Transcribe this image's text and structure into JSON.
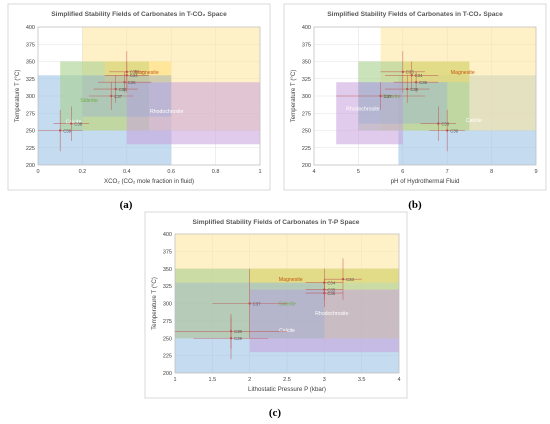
{
  "chart_data": [
    {
      "type": "region-scatter",
      "panel_label": "(a)",
      "title": "Simplified Stability Fields of Carbonates in T-CO₂ Space",
      "xlabel": "XCO₂ (CO₂ mole fraction in fluid)",
      "ylabel": "Temperature  T (°C)",
      "xlim": [
        0,
        1
      ],
      "ylim": [
        200,
        400
      ],
      "xticks": [
        "0",
        "0.2",
        "0.4",
        "0.6",
        "0.8",
        "1"
      ],
      "yticks": [
        "200",
        "225",
        "250",
        "275",
        "300",
        "325",
        "350",
        "375",
        "400"
      ],
      "grid": true,
      "regions": [
        {
          "label": "Calcite",
          "color": "#9dc3e6",
          "alpha": 0.6,
          "x": [
            0.0,
            0.6
          ],
          "y": [
            200,
            330
          ]
        },
        {
          "label": "",
          "color": "#ffe699",
          "alpha": 0.55,
          "x": [
            0.2,
            1.0
          ],
          "y": [
            250,
            400
          ]
        },
        {
          "label": "Siderite",
          "color": "#a9d18e",
          "alpha": 0.6,
          "x": [
            0.1,
            0.5
          ],
          "y": [
            250,
            350
          ]
        },
        {
          "label": "Rhodochrosite",
          "color": "#c9a0dc",
          "alpha": 0.55,
          "x": [
            0.4,
            1.0
          ],
          "y": [
            230,
            320
          ]
        },
        {
          "label": "Magnesite",
          "color": "#ffd966",
          "alpha": 0.45,
          "x": [
            0.3,
            0.6
          ],
          "y": [
            320,
            350
          ]
        },
        {
          "label": "",
          "color": "#8faadc",
          "alpha": 0.35,
          "x": [
            0.2,
            0.6
          ],
          "y": [
            270,
            330
          ]
        }
      ],
      "region_label_pos": [
        {
          "text": "Magnesite",
          "x": 0.49,
          "y": 335,
          "color": "#c55a11"
        },
        {
          "text": "Siderite",
          "x": 0.23,
          "y": 294,
          "color": "#70ad47"
        },
        {
          "text": "Rhodochrosite",
          "x": 0.58,
          "y": 278,
          "color": "#ffffff"
        },
        {
          "text": "Calcite",
          "x": 0.16,
          "y": 263,
          "color": "#ffffff"
        }
      ],
      "points": [
        {
          "label": "C33",
          "x": 0.4,
          "y": 335,
          "xerr": 0.08,
          "yerr": 30
        },
        {
          "label": "C34",
          "x": 0.4,
          "y": 330,
          "xerr": 0.1,
          "yerr": 20
        },
        {
          "label": "C35",
          "x": 0.39,
          "y": 320,
          "xerr": 0.12,
          "yerr": 15
        },
        {
          "label": "C36",
          "x": 0.35,
          "y": 310,
          "xerr": 0.1,
          "yerr": 20
        },
        {
          "label": "C37",
          "x": 0.33,
          "y": 300,
          "xerr": 0.1,
          "yerr": 20
        },
        {
          "label": "C38",
          "x": 0.15,
          "y": 260,
          "xerr": 0.08,
          "yerr": 25
        },
        {
          "label": "C39",
          "x": 0.1,
          "y": 250,
          "xerr": 0.1,
          "yerr": 30
        }
      ]
    },
    {
      "type": "region-scatter",
      "panel_label": "(b)",
      "title": "Simplified Stability Fields of Carbonates in T-CO₂ Space",
      "xlabel": "pH of Hydrothermal Fluid",
      "ylabel": "Temperature  T (°C)",
      "xlim": [
        4,
        9
      ],
      "ylim": [
        200,
        400
      ],
      "xticks": [
        "4",
        "5",
        "6",
        "7",
        "8",
        "9"
      ],
      "yticks": [
        "200",
        "225",
        "250",
        "275",
        "300",
        "325",
        "350",
        "375",
        "400"
      ],
      "grid": true,
      "regions": [
        {
          "label": "Calcite",
          "color": "#9dc3e6",
          "alpha": 0.6,
          "x": [
            5.9,
            9.0
          ],
          "y": [
            200,
            330
          ]
        },
        {
          "label": "",
          "color": "#ffe699",
          "alpha": 0.55,
          "x": [
            5.5,
            9.0
          ],
          "y": [
            250,
            400
          ]
        },
        {
          "label": "Siderite",
          "color": "#a9d18e",
          "alpha": 0.6,
          "x": [
            5.0,
            7.5
          ],
          "y": [
            250,
            350
          ]
        },
        {
          "label": "Rhodochrosite",
          "color": "#c9a0dc",
          "alpha": 0.55,
          "x": [
            4.5,
            6.0
          ],
          "y": [
            230,
            320
          ]
        },
        {
          "label": "Magnesite",
          "color": "#ffd966",
          "alpha": 0.45,
          "x": [
            6.0,
            7.5
          ],
          "y": [
            320,
            350
          ]
        },
        {
          "label": "",
          "color": "#8faadc",
          "alpha": 0.35,
          "x": [
            5.0,
            7.0
          ],
          "y": [
            260,
            320
          ]
        }
      ],
      "region_label_pos": [
        {
          "text": "Magnesite",
          "x": 7.35,
          "y": 335,
          "color": "#c55a11"
        },
        {
          "text": "Siderite",
          "x": 5.75,
          "y": 300,
          "color": "#70ad47"
        },
        {
          "text": "Rhodochrosite",
          "x": 5.1,
          "y": 282,
          "color": "#ffffff"
        },
        {
          "text": "Calcite",
          "x": 7.6,
          "y": 265,
          "color": "#ffffff"
        }
      ],
      "points": [
        {
          "label": "C33",
          "x": 6.0,
          "y": 335,
          "xerr": 0.5,
          "yerr": 30
        },
        {
          "label": "C34",
          "x": 6.2,
          "y": 330,
          "xerr": 0.6,
          "yerr": 20
        },
        {
          "label": "C35",
          "x": 6.3,
          "y": 320,
          "xerr": 0.5,
          "yerr": 15
        },
        {
          "label": "C36",
          "x": 6.1,
          "y": 310,
          "xerr": 0.5,
          "yerr": 20
        },
        {
          "label": "C37",
          "x": 5.5,
          "y": 300,
          "xerr": 1.0,
          "yerr": 20
        },
        {
          "label": "C38",
          "x": 6.8,
          "y": 260,
          "xerr": 0.4,
          "yerr": 25
        },
        {
          "label": "C39",
          "x": 7.0,
          "y": 250,
          "xerr": 0.4,
          "yerr": 30
        }
      ]
    },
    {
      "type": "region-scatter",
      "panel_label": "(c)",
      "title": "Simplified Stability Fields of Carbonates in T-P Space",
      "xlabel": "Lithostatic Pressure  P (kbar)",
      "ylabel": "Temperature  T (°C)",
      "xlim": [
        1,
        4
      ],
      "ylim": [
        200,
        400
      ],
      "xticks": [
        "1",
        "1.5",
        "2",
        "2.5",
        "3",
        "3.5",
        "4"
      ],
      "yticks": [
        "200",
        "225",
        "250",
        "275",
        "300",
        "325",
        "350",
        "375",
        "400"
      ],
      "grid": true,
      "regions": [
        {
          "label": "Calcite",
          "color": "#9dc3e6",
          "alpha": 0.6,
          "x": [
            1.0,
            4.0
          ],
          "y": [
            200,
            250
          ]
        },
        {
          "label": "",
          "color": "#ffe699",
          "alpha": 0.55,
          "x": [
            1.0,
            4.0
          ],
          "y": [
            250,
            400
          ]
        },
        {
          "label": "Siderite",
          "color": "#a9d18e",
          "alpha": 0.6,
          "x": [
            1.0,
            4.0
          ],
          "y": [
            250,
            350
          ]
        },
        {
          "label": "Rhodochrosite",
          "color": "#c9a0dc",
          "alpha": 0.55,
          "x": [
            2.0,
            4.0
          ],
          "y": [
            230,
            320
          ]
        },
        {
          "label": "Magnesite",
          "color": "#ffd966",
          "alpha": 0.45,
          "x": [
            2.0,
            4.0
          ],
          "y": [
            330,
            350
          ]
        },
        {
          "label": "",
          "color": "#8faadc",
          "alpha": 0.35,
          "x": [
            1.0,
            3.0
          ],
          "y": [
            250,
            330
          ]
        }
      ],
      "region_label_pos": [
        {
          "text": "Magnesite",
          "x": 2.55,
          "y": 335,
          "color": "#c55a11"
        },
        {
          "text": "Siderite",
          "x": 2.5,
          "y": 300,
          "color": "#70ad47"
        },
        {
          "text": "Rhodochrosite",
          "x": 3.1,
          "y": 286,
          "color": "#ffffff"
        },
        {
          "text": "Calcite",
          "x": 2.5,
          "y": 262,
          "color": "#ffffff"
        }
      ],
      "points": [
        {
          "label": "C33",
          "x": 3.25,
          "y": 335,
          "xerr": 0.25,
          "yerr": 30
        },
        {
          "label": "C34",
          "x": 3.0,
          "y": 330,
          "xerr": 0.25,
          "yerr": 20
        },
        {
          "label": "C35",
          "x": 3.0,
          "y": 320,
          "xerr": 0.25,
          "yerr": 15
        },
        {
          "label": "C36",
          "x": 3.0,
          "y": 315,
          "xerr": 0.25,
          "yerr": 20
        },
        {
          "label": "C37",
          "x": 2.0,
          "y": 300,
          "xerr": 0.5,
          "yerr": 50
        },
        {
          "label": "C38",
          "x": 1.75,
          "y": 260,
          "xerr": 0.75,
          "yerr": 25
        },
        {
          "label": "C39",
          "x": 1.75,
          "y": 250,
          "xerr": 0.5,
          "yerr": 30
        }
      ]
    }
  ]
}
